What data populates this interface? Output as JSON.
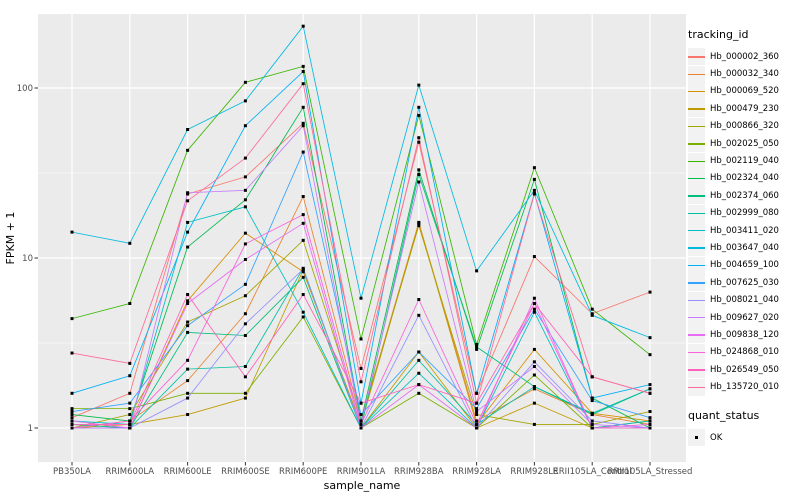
{
  "chart_data": {
    "type": "line",
    "title": "",
    "xlabel": "sample_name",
    "ylabel": "FPKM + 1",
    "y_scale": "log10",
    "y_ticks": [
      1,
      10,
      100
    ],
    "y_minor_ticks": [
      3.1623,
      31.623
    ],
    "ylim": [
      0.63,
      272
    ],
    "grid": true,
    "legend_position": "right",
    "legend_title": "tracking_id",
    "marker": "small-black-square",
    "x_categories": [
      "PB350LA",
      "RRIM600LA",
      "RRIM600LE",
      "RRIM600SE",
      "RRIM600PE",
      "RRIM901LA",
      "RRIM928BA",
      "RRIM928LA",
      "RRIM928LE",
      "RRII105LA_Control",
      "RRII105LA_Stressed"
    ],
    "series": [
      {
        "name": "Hb_000002_360",
        "color": "#F8766D",
        "values": [
          1.15,
          1.6,
          23.8,
          30,
          62,
          2.24,
          48,
          1.6,
          10.2,
          4.7,
          6.3
        ]
      },
      {
        "name": "Hb_000032_340",
        "color": "#EA8331",
        "values": [
          1.0,
          1.1,
          1.9,
          4.7,
          23,
          1.1,
          16.2,
          1.1,
          1.7,
          1.2,
          1.05
        ]
      },
      {
        "name": "Hb_000069_520",
        "color": "#D89000",
        "values": [
          1.05,
          1.0,
          5.6,
          14,
          8.3,
          1.05,
          16.0,
          1.05,
          2.9,
          1.22,
          1.1
        ]
      },
      {
        "name": "Hb_000479_230",
        "color": "#C09B00",
        "values": [
          1.0,
          1.05,
          1.2,
          1.5,
          8.5,
          1.0,
          2.8,
          1.0,
          1.4,
          1.0,
          1.0
        ]
      },
      {
        "name": "Hb_000866_320",
        "color": "#A3A500",
        "values": [
          1.0,
          1.2,
          4.2,
          6.0,
          12.7,
          1.1,
          15.5,
          1.2,
          1.05,
          1.05,
          1.25
        ]
      },
      {
        "name": "Hb_002025_050",
        "color": "#7CAE00",
        "values": [
          1.3,
          1.3,
          1.6,
          1.6,
          4.5,
          1.0,
          1.6,
          1.0,
          2.05,
          1.0,
          1.1
        ]
      },
      {
        "name": "Hb_002119_040",
        "color": "#39B600",
        "values": [
          4.4,
          5.4,
          43,
          108,
          134,
          3.34,
          69,
          3.1,
          34,
          5.0,
          2.7
        ]
      },
      {
        "name": "Hb_002324_040",
        "color": "#00BB4E",
        "values": [
          1.2,
          1.1,
          11.6,
          22,
          77,
          1.1,
          33,
          2.9,
          29,
          1.5,
          1.0
        ]
      },
      {
        "name": "Hb_002374_060",
        "color": "#00BF7D",
        "values": [
          1.0,
          1.0,
          3.65,
          3.5,
          7.7,
          1.0,
          31,
          3.0,
          1.75,
          1.2,
          1.7
        ]
      },
      {
        "name": "Hb_002999_080",
        "color": "#00C1A3",
        "values": [
          1.05,
          1.0,
          2.22,
          2.3,
          8.7,
          1.0,
          2.5,
          1.05,
          1.75,
          1.22,
          1.7
        ]
      },
      {
        "name": "Hb_003411_020",
        "color": "#00BFC4",
        "values": [
          1.1,
          1.05,
          16.2,
          20,
          4.8,
          1.0,
          2.1,
          1.0,
          4.8,
          1.0,
          1.1
        ]
      },
      {
        "name": "Hb_003647_040",
        "color": "#00BAE0",
        "values": [
          14.2,
          12.2,
          57,
          84,
          231,
          5.8,
          104,
          8.4,
          25,
          4.6,
          3.4
        ]
      },
      {
        "name": "Hb_004659_100",
        "color": "#00B0F6",
        "values": [
          1.6,
          2.03,
          14.2,
          60,
          125,
          1.4,
          77,
          1.6,
          24,
          1.5,
          1.8
        ]
      },
      {
        "name": "Hb_007625_030",
        "color": "#35A2FF",
        "values": [
          1.25,
          1.4,
          4.0,
          7.0,
          42,
          1.2,
          2.8,
          1.3,
          5.0,
          1.45,
          1.15
        ]
      },
      {
        "name": "Hb_008021_040",
        "color": "#9590FF",
        "values": [
          1.0,
          1.0,
          1.5,
          4.1,
          8.6,
          1.0,
          4.6,
          1.0,
          2.45,
          1.1,
          1.0
        ]
      },
      {
        "name": "Hb_009627_020",
        "color": "#C77CFF",
        "values": [
          1.0,
          1.0,
          24.2,
          25,
          60,
          1.05,
          28,
          1.25,
          2.3,
          1.05,
          1.0
        ]
      },
      {
        "name": "Hb_009838_120",
        "color": "#E76BF3",
        "values": [
          1.1,
          1.0,
          5.4,
          9.8,
          16,
          1.0,
          1.8,
          1.0,
          5.8,
          1.0,
          1.0
        ]
      },
      {
        "name": "Hb_024868_010",
        "color": "#FA62DB",
        "values": [
          1.0,
          1.1,
          2.5,
          12.1,
          18,
          1.05,
          5.7,
          1.05,
          5.4,
          1.0,
          1.05
        ]
      },
      {
        "name": "Hb_026549_050",
        "color": "#FF62BC",
        "values": [
          1.05,
          1.05,
          6.1,
          2.0,
          6.1,
          1.4,
          1.8,
          1.4,
          5.4,
          2.0,
          1.6
        ]
      },
      {
        "name": "Hb_135720_010",
        "color": "#FF6A98",
        "values": [
          2.76,
          2.4,
          21.7,
          38.7,
          106,
          1.87,
          51,
          1.4,
          23.8,
          2.0,
          1.6
        ]
      }
    ],
    "quant_legend": {
      "title": "quant_status",
      "items": [
        "OK"
      ]
    }
  },
  "colors": {
    "page_bg": "#FFFFFF",
    "panel_bg": "#EBEBEB",
    "grid": "#FFFFFF",
    "axis_text": "#4D4D4D",
    "title_text": "#000000",
    "legend_key_bg": "#F2F2F2",
    "marker": "#000000",
    "tick": "#333333"
  }
}
